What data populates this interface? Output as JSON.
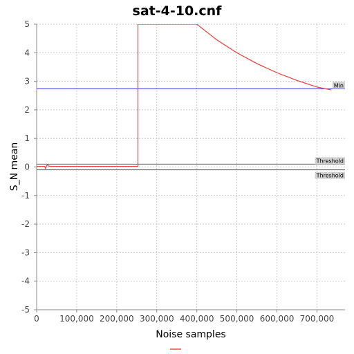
{
  "chart_data": {
    "type": "line",
    "title": "sat-4-10.cnf",
    "xlabel": "Noise samples",
    "ylabel": "S_N mean",
    "xlim": [
      0,
      770000
    ],
    "ylim": [
      -5,
      5
    ],
    "x_ticks": [
      0,
      100000,
      200000,
      300000,
      400000,
      500000,
      600000,
      700000
    ],
    "x_tick_labels": [
      "0",
      "100,000",
      "200,000",
      "300,000",
      "400,000",
      "500,000",
      "600,000",
      "700,000"
    ],
    "y_ticks": [
      5,
      4,
      3,
      2,
      1,
      0,
      -1,
      -2,
      -3,
      -4,
      -5
    ],
    "y_tick_labels": [
      "5",
      "4",
      "3",
      "2",
      "1",
      "0",
      "-1",
      "-2",
      "-3",
      "-4",
      "-5"
    ],
    "grid": true,
    "legend": "bottom",
    "series": [
      {
        "color": "#e84a4a",
        "x": [
          0,
          20000,
          22000,
          25000,
          27000,
          30000,
          35000,
          100000,
          200000,
          253000,
          253000,
          253000,
          400000,
          450000,
          500000,
          550000,
          600000,
          650000,
          700000,
          735000
        ],
        "y": [
          0.02,
          0.02,
          -0.05,
          0.04,
          0.08,
          0.03,
          0.02,
          0.02,
          0.02,
          0.02,
          5.0,
          5.0,
          5.0,
          4.45,
          4.0,
          3.62,
          3.3,
          3.03,
          2.8,
          2.7
        ]
      }
    ],
    "reference_lines": [
      {
        "label": "Min",
        "y": 2.74,
        "color": "#3a3ad6"
      },
      {
        "label": "Threshold",
        "y": 0.1,
        "color": "#555555"
      },
      {
        "label": "Threshold",
        "y": -0.1,
        "color": "#555555"
      }
    ]
  }
}
